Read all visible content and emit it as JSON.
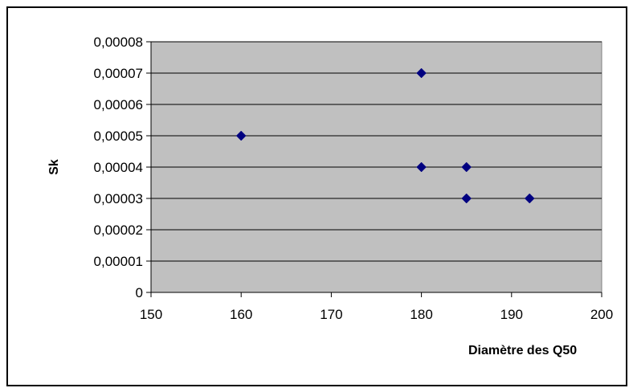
{
  "chart_data": {
    "type": "scatter",
    "title": "",
    "xlabel": "Diamètre des Q50",
    "ylabel": "Sk",
    "xlim": [
      150,
      200
    ],
    "ylim": [
      0,
      8e-05
    ],
    "x_ticks": [
      150,
      160,
      170,
      180,
      190,
      200
    ],
    "x_tick_labels": [
      "150",
      "160",
      "170",
      "180",
      "190",
      "200"
    ],
    "y_ticks": [
      0,
      1e-05,
      2e-05,
      3e-05,
      4e-05,
      5e-05,
      6e-05,
      7e-05,
      8e-05
    ],
    "y_tick_labels": [
      "0",
      "0,00001",
      "0,00002",
      "0,00003",
      "0,00004",
      "0,00005",
      "0,00006",
      "0,00007",
      "0,00008"
    ],
    "grid": "horizontal",
    "legend": "none",
    "series": [
      {
        "points": [
          {
            "x": 160,
            "y": 5e-05
          },
          {
            "x": 180,
            "y": 7e-05
          },
          {
            "x": 180,
            "y": 4e-05
          },
          {
            "x": 185,
            "y": 4e-05
          },
          {
            "x": 185,
            "y": 3e-05
          },
          {
            "x": 192,
            "y": 3e-05
          }
        ],
        "marker": "diamond",
        "color": "#000080"
      }
    ],
    "colors": {
      "plot_background": "#c0c0c0",
      "gridline": "#000000",
      "marker": "#000080"
    }
  }
}
